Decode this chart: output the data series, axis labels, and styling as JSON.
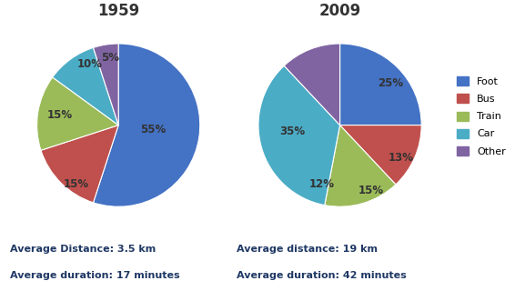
{
  "title_1959": "1959",
  "title_2009": "2009",
  "categories": [
    "Foot",
    "Bus",
    "Train",
    "Car",
    "Other"
  ],
  "colors": [
    "#4472C4",
    "#C0504D",
    "#9BBB59",
    "#4BACC6",
    "#8064A2"
  ],
  "values_1959": [
    55,
    15,
    15,
    10,
    5
  ],
  "values_2009": [
    25,
    13,
    15,
    35,
    12
  ],
  "labels_1959": [
    "55%",
    "15%",
    "15%",
    "10%",
    "5%"
  ],
  "labels_2009": [
    "25%",
    "13%",
    "15%",
    "35%",
    "12%"
  ],
  "startangle_1959": 90,
  "startangle_2009": 90,
  "text1_1959": "Average Distance: 3.5 km",
  "text2_1959": "Average duration: 17 minutes",
  "text1_2009": "Average distance: 19 km",
  "text2_2009": "Average duration: 42 minutes",
  "text_color": "#1F3864",
  "background_color": "#FFFFFF",
  "label_color_1959": [
    "#333333",
    "#333333",
    "#333333",
    "#333333",
    "#333333"
  ],
  "label_color_2009": [
    "#333333",
    "#333333",
    "#333333",
    "#333333",
    "#333333"
  ]
}
